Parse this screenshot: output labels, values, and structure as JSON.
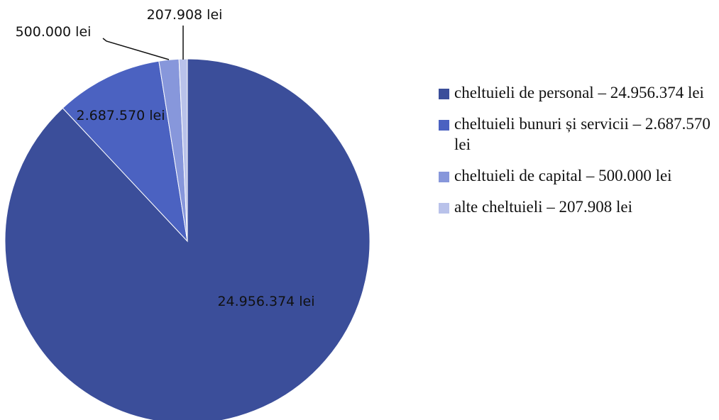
{
  "chart_data": {
    "type": "pie",
    "categories": [
      "cheltuieli de personal – 24.956.374 lei",
      "cheltuieli bunuri și servicii – 2.687.570 lei",
      "cheltuieli de capital – 500.000 lei",
      "alte cheltuieli – 207.908 lei"
    ],
    "values": [
      24956374,
      2687570,
      500000,
      207908
    ],
    "value_labels": [
      "24.956.374 lei",
      "2.687.570 lei",
      "500.000 lei",
      "207.908 lei"
    ],
    "colors": [
      "#3b4e9a",
      "#4b62c1",
      "#8797db",
      "#b9c2ea"
    ],
    "legend": "right"
  }
}
